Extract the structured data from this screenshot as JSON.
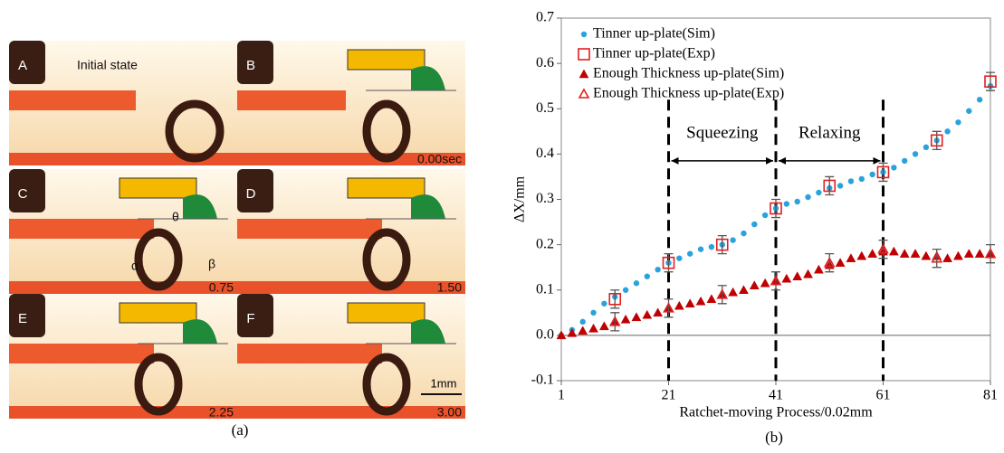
{
  "panel_a": {
    "label": "(a)",
    "tiles": [
      {
        "letter": "A",
        "text": "Initial state"
      },
      {
        "letter": "B",
        "text": "0.00sec"
      },
      {
        "letter": "C",
        "text": "0.75"
      },
      {
        "letter": "D",
        "text": "1.50"
      },
      {
        "letter": "E",
        "text": "2.25"
      },
      {
        "letter": "F",
        "text": "3.00"
      }
    ],
    "angles": [
      "θ",
      "α",
      "β"
    ],
    "scale_bar": "1mm"
  },
  "panel_b_label": "(b)",
  "chart_data": {
    "type": "scatter",
    "xlabel": "Ratchet-moving Process/0.02mm",
    "ylabel": "ΔX/mm",
    "xlim": [
      1,
      81
    ],
    "xticks": [
      1,
      21,
      41,
      61,
      81
    ],
    "ylim": [
      -0.1,
      0.7
    ],
    "yticks": [
      -0.1,
      {
        "value": 0,
        "label": "0.0"
      },
      0.1,
      0.2,
      0.3,
      0.4,
      0.5,
      0.6,
      0.7
    ],
    "dividers": [
      21,
      41,
      61
    ],
    "annotations": [
      {
        "text": "Squeezing",
        "from": 21,
        "to": 41,
        "y": 0.385
      },
      {
        "text": "Relaxing",
        "from": 41,
        "to": 61,
        "y": 0.385
      }
    ],
    "series": [
      {
        "name": "Tinner up-plate(Sim)",
        "color": "#29a3dc",
        "marker": "circle",
        "x": [
          1,
          3,
          5,
          7,
          9,
          11,
          13,
          15,
          17,
          19,
          21,
          23,
          25,
          27,
          29,
          31,
          33,
          35,
          37,
          39,
          41,
          43,
          45,
          47,
          49,
          51,
          53,
          55,
          57,
          59,
          61,
          63,
          65,
          67,
          69,
          71,
          73,
          75,
          77,
          79,
          81
        ],
        "values": [
          0,
          0.012,
          0.03,
          0.05,
          0.07,
          0.085,
          0.1,
          0.115,
          0.13,
          0.145,
          0.16,
          0.17,
          0.18,
          0.19,
          0.195,
          0.2,
          0.21,
          0.225,
          0.245,
          0.265,
          0.28,
          0.29,
          0.295,
          0.305,
          0.315,
          0.325,
          0.33,
          0.34,
          0.345,
          0.355,
          0.36,
          0.37,
          0.385,
          0.4,
          0.415,
          0.43,
          0.45,
          0.47,
          0.495,
          0.52,
          0.55
        ]
      },
      {
        "name": "Tinner up-plate(Exp)",
        "color": "#e02020",
        "marker": "square",
        "x": [
          11,
          21,
          31,
          41,
          51,
          61,
          71,
          81
        ],
        "values": [
          0.08,
          0.16,
          0.2,
          0.28,
          0.33,
          0.36,
          0.43,
          0.56
        ],
        "errors": [
          0.02,
          0.02,
          0.02,
          0.02,
          0.02,
          0.02,
          0.02,
          0.02
        ]
      },
      {
        "name": "Enough Thickness up-plate(Sim)",
        "color": "#c00000",
        "marker": "triangle",
        "x": [
          1,
          3,
          5,
          7,
          9,
          11,
          13,
          15,
          17,
          19,
          21,
          23,
          25,
          27,
          29,
          31,
          33,
          35,
          37,
          39,
          41,
          43,
          45,
          47,
          49,
          51,
          53,
          55,
          57,
          59,
          61,
          63,
          65,
          67,
          69,
          71,
          73,
          75,
          77,
          79,
          81
        ],
        "values": [
          0,
          0.005,
          0.01,
          0.015,
          0.02,
          0.03,
          0.035,
          0.04,
          0.045,
          0.05,
          0.06,
          0.065,
          0.07,
          0.075,
          0.08,
          0.09,
          0.095,
          0.1,
          0.11,
          0.115,
          0.12,
          0.125,
          0.13,
          0.135,
          0.145,
          0.155,
          0.16,
          0.17,
          0.175,
          0.18,
          0.185,
          0.185,
          0.18,
          0.18,
          0.175,
          0.175,
          0.17,
          0.175,
          0.18,
          0.18,
          0.18
        ]
      },
      {
        "name": "Enough Thickness up-plate(Exp)",
        "color": "#e02020",
        "marker": "triangle-open",
        "x": [
          11,
          21,
          31,
          41,
          51,
          61,
          71,
          81
        ],
        "values": [
          0.03,
          0.06,
          0.09,
          0.12,
          0.16,
          0.19,
          0.17,
          0.18
        ],
        "errors": [
          0.02,
          0.02,
          0.02,
          0.02,
          0.02,
          0.02,
          0.02,
          0.02
        ]
      }
    ]
  }
}
